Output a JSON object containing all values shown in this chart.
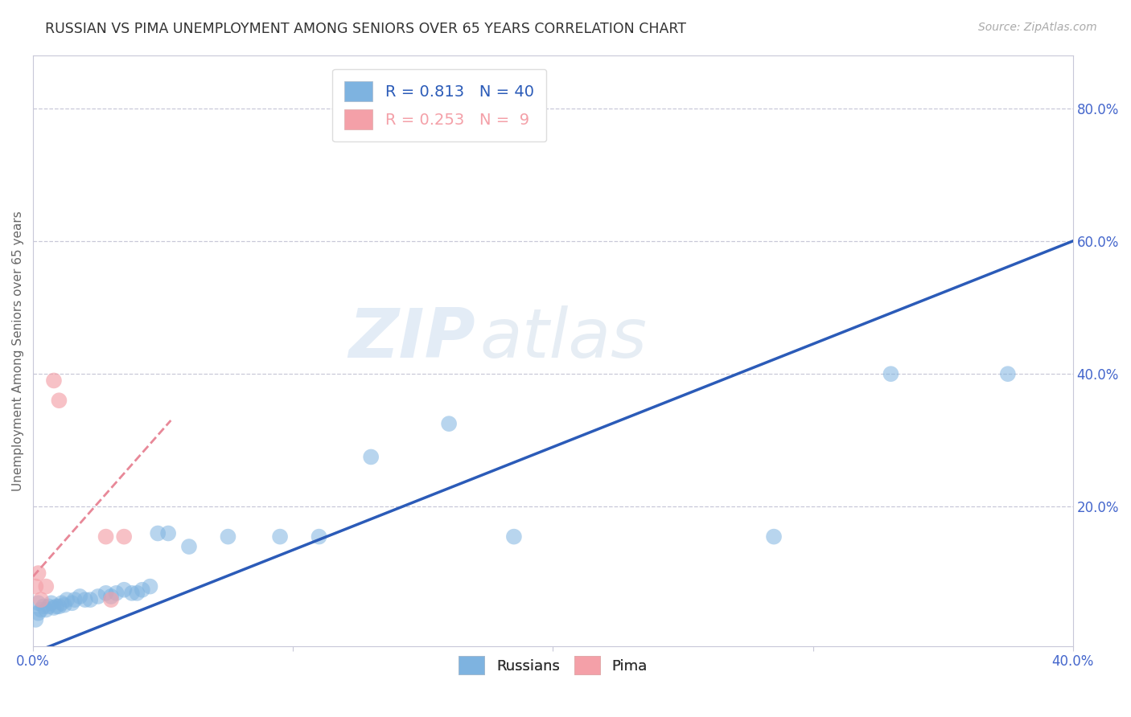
{
  "title": "RUSSIAN VS PIMA UNEMPLOYMENT AMONG SENIORS OVER 65 YEARS CORRELATION CHART",
  "source": "Source: ZipAtlas.com",
  "xlabel": "",
  "ylabel": "Unemployment Among Seniors over 65 years",
  "xlim": [
    0.0,
    0.4
  ],
  "ylim": [
    -0.01,
    0.88
  ],
  "xticks": [
    0.0,
    0.1,
    0.2,
    0.3,
    0.4
  ],
  "xtick_labels": [
    "0.0%",
    "",
    "",
    "",
    "40.0%"
  ],
  "yticks_right": [
    0.2,
    0.4,
    0.6,
    0.8
  ],
  "ytick_labels_right": [
    "20.0%",
    "40.0%",
    "60.0%",
    "80.0%"
  ],
  "russian_R": 0.813,
  "russian_N": 40,
  "pima_R": 0.253,
  "pima_N": 9,
  "russian_color": "#7EB3E0",
  "pima_color": "#F4A0A8",
  "russian_line_color": "#2B5BB8",
  "pima_line_color": "#E88898",
  "watermark_zip": "ZIP",
  "watermark_atlas": "atlas",
  "background_color": "#FFFFFF",
  "grid_color": "#C8C8D8",
  "axis_label_color": "#4466CC",
  "title_color": "#333333",
  "russians_x": [
    0.001,
    0.002,
    0.002,
    0.003,
    0.004,
    0.005,
    0.006,
    0.007,
    0.008,
    0.009,
    0.01,
    0.011,
    0.012,
    0.013,
    0.015,
    0.016,
    0.018,
    0.02,
    0.022,
    0.025,
    0.028,
    0.03,
    0.032,
    0.035,
    0.038,
    0.04,
    0.042,
    0.045,
    0.048,
    0.052,
    0.06,
    0.075,
    0.095,
    0.11,
    0.13,
    0.16,
    0.185,
    0.285,
    0.33,
    0.375
  ],
  "russians_y": [
    0.03,
    0.04,
    0.055,
    0.045,
    0.05,
    0.045,
    0.05,
    0.055,
    0.048,
    0.05,
    0.05,
    0.055,
    0.052,
    0.06,
    0.055,
    0.06,
    0.065,
    0.06,
    0.06,
    0.065,
    0.07,
    0.065,
    0.07,
    0.075,
    0.07,
    0.07,
    0.075,
    0.08,
    0.16,
    0.16,
    0.14,
    0.155,
    0.155,
    0.155,
    0.275,
    0.325,
    0.155,
    0.155,
    0.4,
    0.4
  ],
  "pimas_x": [
    0.001,
    0.002,
    0.003,
    0.005,
    0.008,
    0.01,
    0.028,
    0.03,
    0.035
  ],
  "pimas_y": [
    0.08,
    0.1,
    0.06,
    0.08,
    0.39,
    0.36,
    0.155,
    0.06,
    0.155
  ],
  "russian_line_x": [
    0.0,
    0.4
  ],
  "russian_line_y": [
    -0.02,
    0.6
  ],
  "pima_line_x": [
    0.0,
    0.053
  ],
  "pima_line_y": [
    0.095,
    0.33
  ]
}
